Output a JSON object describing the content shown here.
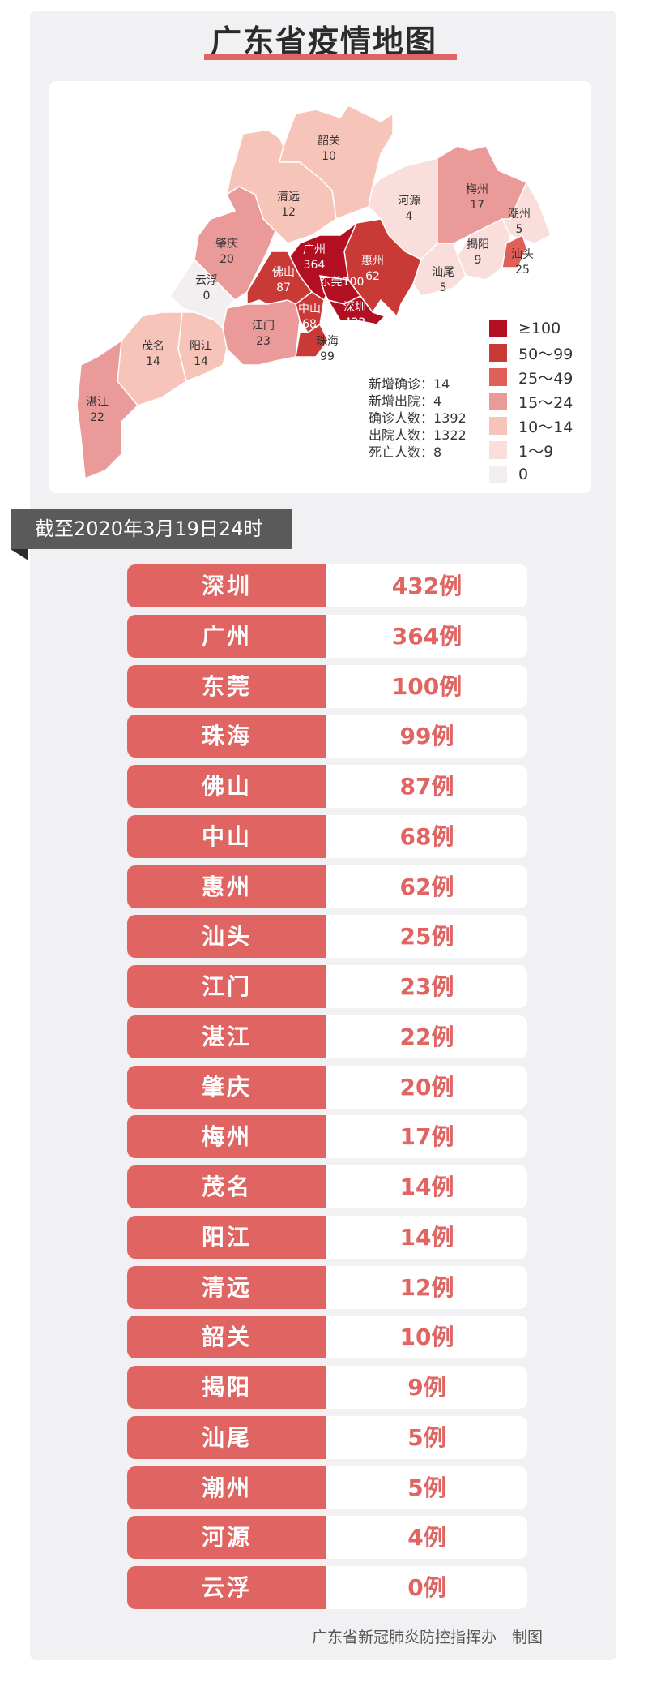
{
  "title": "广东省疫情地图",
  "date_banner": "截至2020年3月19日24时",
  "footer": "广东省新冠肺炎防控指挥办　制图",
  "stats": [
    {
      "label": "新增确诊",
      "value": "14"
    },
    {
      "label": "新增出院",
      "value": "4"
    },
    {
      "label": "确诊人数",
      "value": "1392"
    },
    {
      "label": "出院人数",
      "value": "1322"
    },
    {
      "label": "死亡人数",
      "value": "8"
    }
  ],
  "legend": [
    {
      "label": "≥100",
      "color": "#b30f22"
    },
    {
      "label": "50～99",
      "color": "#c93a37"
    },
    {
      "label": "25～49",
      "color": "#df5f5a"
    },
    {
      "label": "15～24",
      "color": "#ea9a98"
    },
    {
      "label": "10～14",
      "color": "#f6c4b8"
    },
    {
      "label": "1～9",
      "color": "#f9dedb"
    },
    {
      "label": "0",
      "color": "#f3eff0"
    }
  ],
  "map_regions": [
    {
      "name": "韶关",
      "value": "10"
    },
    {
      "name": "清远",
      "value": "12"
    },
    {
      "name": "河源",
      "value": "4"
    },
    {
      "name": "梅州",
      "value": "17"
    },
    {
      "name": "潮州",
      "value": "5"
    },
    {
      "name": "揭阳",
      "value": "9"
    },
    {
      "name": "汕头",
      "value": "25"
    },
    {
      "name": "汕尾",
      "value": "5"
    },
    {
      "name": "惠州",
      "value": "62"
    },
    {
      "name": "广州",
      "value": "364"
    },
    {
      "name": "东莞",
      "value": "100"
    },
    {
      "name": "深圳",
      "value": "432"
    },
    {
      "name": "佛山",
      "value": "87"
    },
    {
      "name": "中山",
      "value": "68"
    },
    {
      "name": "珠海",
      "value": "99"
    },
    {
      "name": "江门",
      "value": "23"
    },
    {
      "name": "肇庆",
      "value": "20"
    },
    {
      "name": "云浮",
      "value": "0"
    },
    {
      "name": "阳江",
      "value": "14"
    },
    {
      "name": "茂名",
      "value": "14"
    },
    {
      "name": "湛江",
      "value": "22"
    }
  ],
  "rows": [
    {
      "city": "深圳",
      "count": "432例"
    },
    {
      "city": "广州",
      "count": "364例"
    },
    {
      "city": "东莞",
      "count": "100例"
    },
    {
      "city": "珠海",
      "count": "99例"
    },
    {
      "city": "佛山",
      "count": "87例"
    },
    {
      "city": "中山",
      "count": "68例"
    },
    {
      "city": "惠州",
      "count": "62例"
    },
    {
      "city": "汕头",
      "count": "25例"
    },
    {
      "city": "江门",
      "count": "23例"
    },
    {
      "city": "湛江",
      "count": "22例"
    },
    {
      "city": "肇庆",
      "count": "20例"
    },
    {
      "city": "梅州",
      "count": "17例"
    },
    {
      "city": "茂名",
      "count": "14例"
    },
    {
      "city": "阳江",
      "count": "14例"
    },
    {
      "city": "清远",
      "count": "12例"
    },
    {
      "city": "韶关",
      "count": "10例"
    },
    {
      "city": "揭阳",
      "count": "9例"
    },
    {
      "city": "汕尾",
      "count": "5例"
    },
    {
      "city": "潮州",
      "count": "5例"
    },
    {
      "city": "河源",
      "count": "4例"
    },
    {
      "city": "云浮",
      "count": "0例"
    }
  ]
}
